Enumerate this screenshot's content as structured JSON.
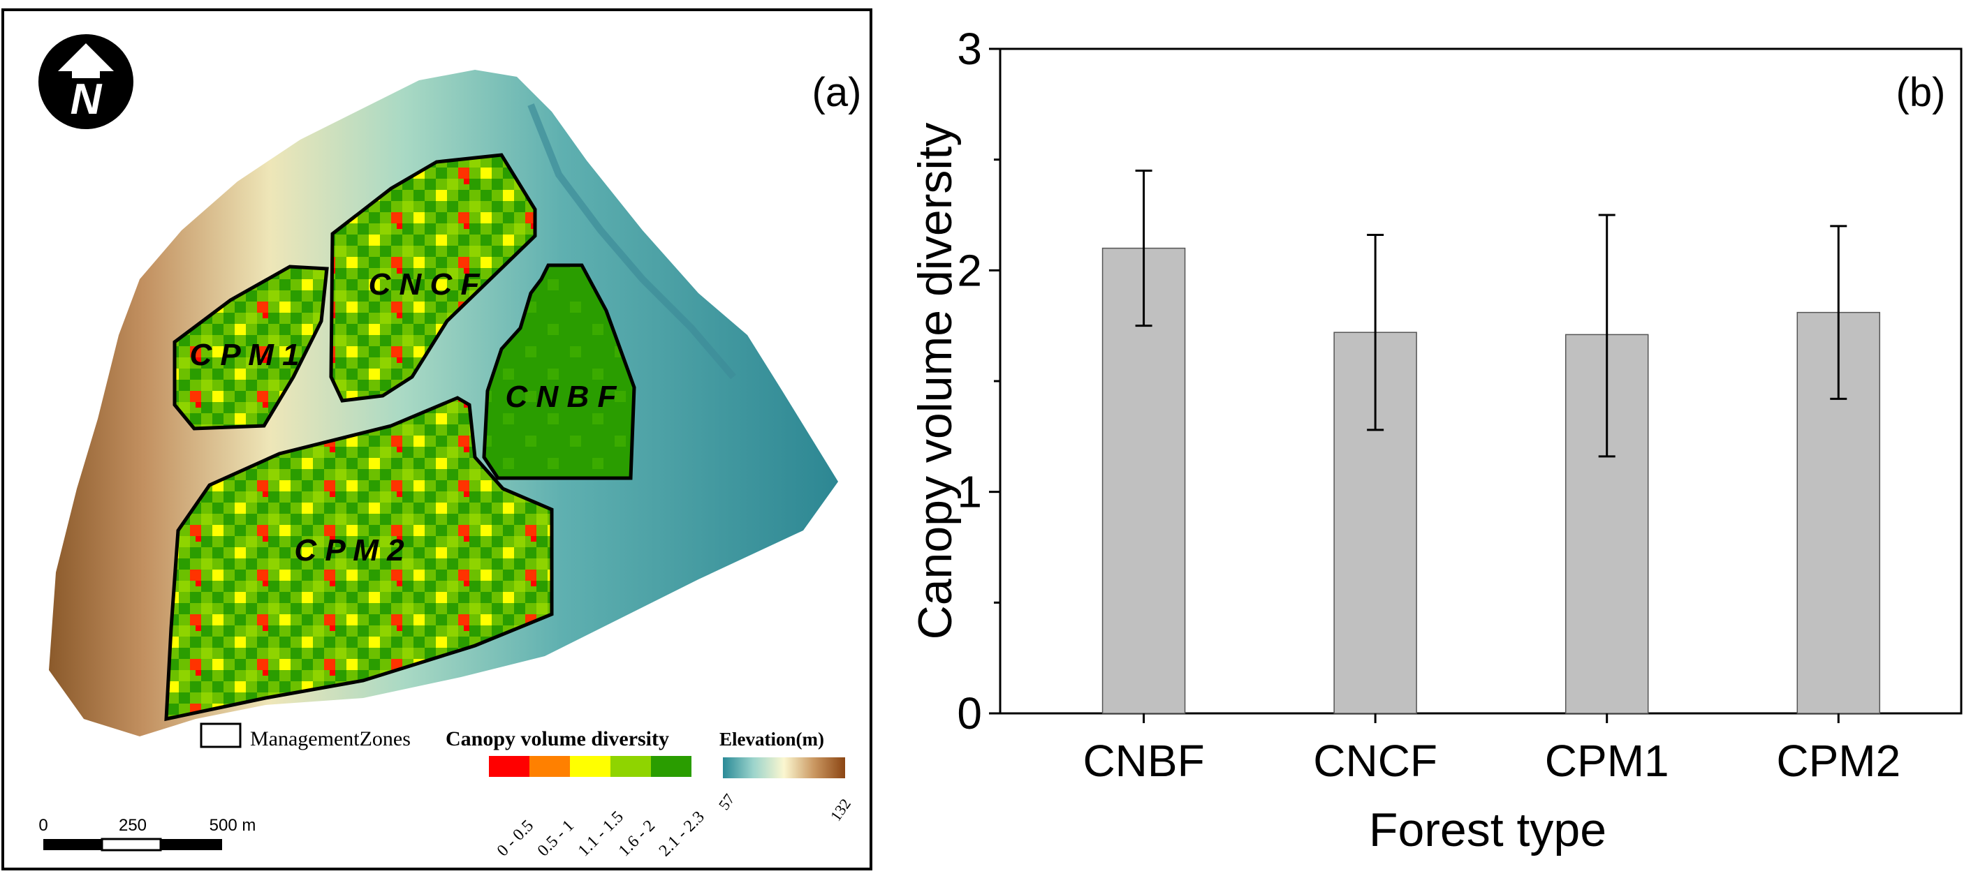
{
  "panel_a": {
    "panel_label": "(a)",
    "north_arrow_letter": "N",
    "zones": [
      {
        "code": "CPM1",
        "label": "C P M 1"
      },
      {
        "code": "CNCF",
        "label": "C N C F"
      },
      {
        "code": "CNBF",
        "label": "C N B F"
      },
      {
        "code": "CPM2",
        "label": "C P M 2"
      }
    ],
    "legend": {
      "management_zones_label": "ManagementZones",
      "diversity_title": "Canopy volume diversity",
      "diversity_classes": [
        {
          "label": "0 - 0.5",
          "color": "#ff0000"
        },
        {
          "label": "0.5 - 1",
          "color": "#ff8000"
        },
        {
          "label": "1.1 - 1.5",
          "color": "#ffff00"
        },
        {
          "label": "1.6 - 2",
          "color": "#8fd400"
        },
        {
          "label": "2.1 - 2.3",
          "color": "#2a9d00"
        }
      ],
      "elevation_title": "Elevation(m)",
      "elevation_min": "57",
      "elevation_max": "132",
      "elevation_colors": [
        "#2a8a97",
        "#9cd4cc",
        "#fbf7d0",
        "#c99660",
        "#8b4513"
      ]
    },
    "scale_bar": {
      "ticks": [
        "0",
        "250",
        "500 m"
      ]
    }
  },
  "chart_data": {
    "type": "bar",
    "panel_label": "(b)",
    "title": "",
    "categories": [
      "CNBF",
      "CNCF",
      "CPM1",
      "CPM2"
    ],
    "values": [
      2.1,
      1.72,
      1.71,
      1.81
    ],
    "error_low": [
      1.75,
      1.28,
      1.16,
      1.42
    ],
    "error_high": [
      2.45,
      2.16,
      2.25,
      2.2
    ],
    "xlabel": "Forest type",
    "ylabel": "Canopy volume diversity",
    "ylim": [
      0,
      3
    ],
    "yticks": [
      "0",
      "1",
      "2",
      "3"
    ],
    "bar_color": "#c0c0c0",
    "grid": false
  }
}
